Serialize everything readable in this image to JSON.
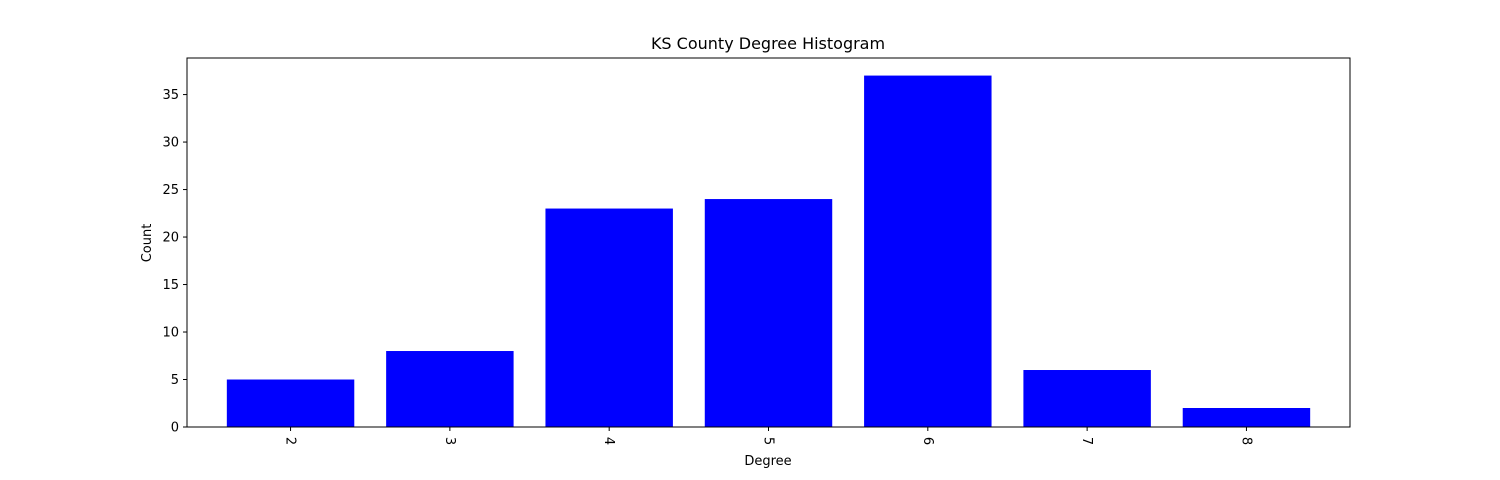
{
  "chart_data": {
    "type": "bar",
    "title": "KS County Degree Histogram",
    "xlabel": "Degree",
    "ylabel": "Count",
    "categories": [
      "2",
      "3",
      "4",
      "5",
      "6",
      "7",
      "8"
    ],
    "values": [
      5,
      8,
      23,
      24,
      37,
      6,
      2
    ],
    "ylim": [
      0,
      38.85
    ],
    "yticks": [
      0,
      5,
      10,
      15,
      20,
      25,
      30,
      35
    ],
    "bar_color": "#0000ff",
    "grid": false,
    "legend": "none",
    "xtick_rotation": "rotated"
  }
}
